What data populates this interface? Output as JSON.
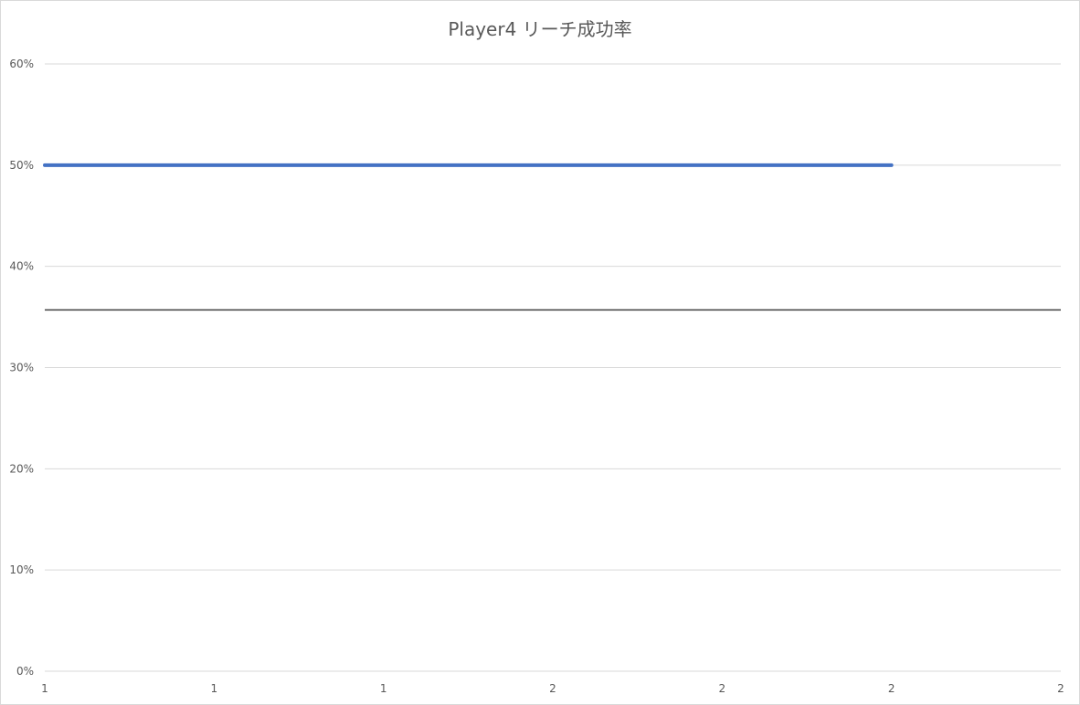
{
  "chart_data": {
    "type": "line",
    "title": "Player4 リーチ成功率",
    "x": [
      "1",
      "1",
      "1",
      "2",
      "2",
      "2",
      "2"
    ],
    "y_ticks": [
      "0%",
      "10%",
      "20%",
      "30%",
      "40%",
      "50%",
      "60%"
    ],
    "ylim": [
      0,
      0.6
    ],
    "grid": true,
    "series": [
      {
        "values": [
          0.5,
          0.5,
          0.5,
          0.5,
          0.5,
          0.5,
          null
        ],
        "color": "#4472c4"
      }
    ],
    "reference_line": {
      "value": 0.357,
      "color": "#404040"
    },
    "gridline_color": "#d9d9d9"
  }
}
